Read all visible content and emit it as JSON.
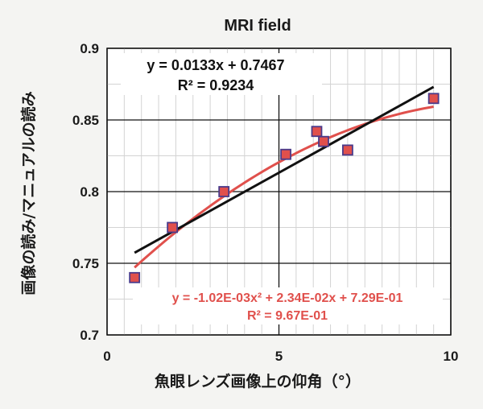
{
  "chart_data": {
    "type": "scatter",
    "title": "MRI field",
    "xlabel": "魚眼レンズ画像上の仰角（°）",
    "ylabel": "画像の読み/マニュアルの読み",
    "xlim": [
      0,
      10
    ],
    "ylim": [
      0.7,
      0.9
    ],
    "x_ticks": [
      "0",
      "5",
      "10"
    ],
    "y_ticks": [
      "0.7",
      "0.75",
      "0.8",
      "0.85",
      "0.9"
    ],
    "grid": true,
    "points": [
      {
        "x": 0.8,
        "y": 0.74
      },
      {
        "x": 1.9,
        "y": 0.775
      },
      {
        "x": 3.4,
        "y": 0.8
      },
      {
        "x": 5.2,
        "y": 0.826
      },
      {
        "x": 6.1,
        "y": 0.842
      },
      {
        "x": 6.3,
        "y": 0.835
      },
      {
        "x": 7.0,
        "y": 0.829
      },
      {
        "x": 9.5,
        "y": 0.865
      }
    ],
    "linear_fit": {
      "slope": 0.0133,
      "intercept": 0.7467,
      "x_range": [
        0.8,
        9.5
      ],
      "equation": "y = 0.0133x + 0.7467",
      "r2": "R² = 0.9234"
    },
    "poly_fit": {
      "a": -0.00102,
      "b": 0.0234,
      "c": 0.729,
      "x_range": [
        0.8,
        9.5
      ],
      "equation": "y = -1.02E-03x² + 2.34E-02x + 7.29E-01",
      "r2": "R² = 9.67E-01"
    },
    "colors": {
      "marker_fill": "#e0504c",
      "marker_stroke": "#4a3a8a",
      "linear": "#111111",
      "poly": "#e0504c"
    }
  }
}
